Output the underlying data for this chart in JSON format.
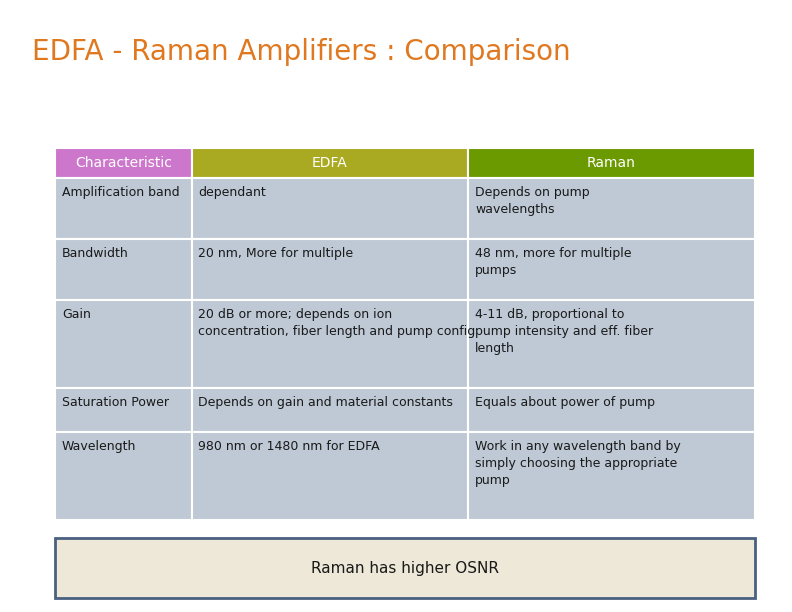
{
  "title": "EDFA - Raman Amplifiers : Comparison",
  "title_color": "#E07820",
  "title_fontsize": 20,
  "bg_color": "#FFFFFF",
  "header": [
    "Characteristic",
    "EDFA",
    "Raman"
  ],
  "header_colors": [
    "#CC77CC",
    "#AAAA22",
    "#6B9900"
  ],
  "header_text_color": "#FFFFFF",
  "row_bg": "#BEC9D5",
  "rows": [
    [
      "Amplification band",
      "dependant",
      "Depends on pump\nwavelengths"
    ],
    [
      "Bandwidth",
      "20 nm, More for multiple",
      "48 nm, more for multiple\npumps"
    ],
    [
      "Gain",
      "20 dB or more; depends on ion\nconcentration, fiber length and pump config",
      "4-11 dB, proportional to\npump intensity and eff. fiber\nlength"
    ],
    [
      "Saturation Power",
      "Depends on gain and material constants",
      "Equals about power of pump"
    ],
    [
      "Wavelength",
      "980 nm or 1480 nm for EDFA",
      "Work in any wavelength band by\nsimply choosing the appropriate\npump"
    ]
  ],
  "footer_text": "Raman has higher OSNR",
  "footer_bg": "#EDE8D8",
  "footer_border": "#4A6080",
  "cell_fontsize": 9,
  "header_fontsize": 10,
  "footer_fontsize": 11
}
